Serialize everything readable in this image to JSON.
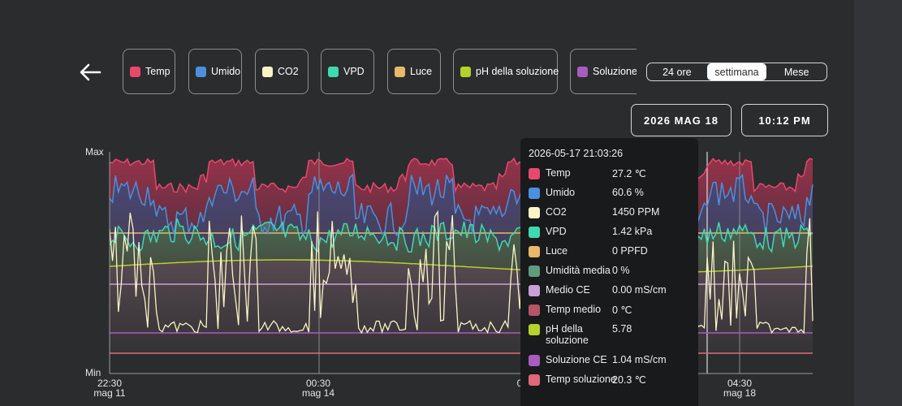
{
  "legend": [
    {
      "label": "Temp",
      "color": "#e8486c"
    },
    {
      "label": "Umido",
      "color": "#4a90dd"
    },
    {
      "label": "CO2",
      "color": "#f9f3c7"
    },
    {
      "label": "VPD",
      "color": "#3fd9b0"
    },
    {
      "label": "Luce",
      "color": "#e9b86b"
    },
    {
      "label": "pH della soluzione",
      "color": "#b5d12b"
    },
    {
      "label": "Soluzione CE",
      "color": "#a95cbf"
    }
  ],
  "range": {
    "options": [
      "24 ore",
      "settimana",
      "Mese"
    ],
    "selected": "settimana"
  },
  "date_label": "2026 MAG 18",
  "time_label": "10:12 PM",
  "axis": {
    "max": "Max",
    "min": "Min"
  },
  "xticks": [
    {
      "time": "22:30",
      "date": "mag 11"
    },
    {
      "time": "00:30",
      "date": "mag 14"
    },
    {
      "time": "0",
      "date": ""
    },
    {
      "time": "04:30",
      "date": "mag 18"
    }
  ],
  "tooltip": {
    "timestamp": "2026-05-17 21:03:26",
    "rows": [
      {
        "name": "Temp",
        "value": "27.2 ℃",
        "color": "#e8486c"
      },
      {
        "name": "Umido",
        "value": "60.6 %",
        "color": "#4a90dd"
      },
      {
        "name": "CO2",
        "value": "1450 PPM",
        "color": "#f9f3c7"
      },
      {
        "name": "VPD",
        "value": "1.42 kPa",
        "color": "#3fd9b0"
      },
      {
        "name": "Luce",
        "value": "0 PPFD",
        "color": "#e9b86b"
      },
      {
        "name": "Umidità media",
        "value": "0 %",
        "color": "#5f9c7c"
      },
      {
        "name": "Medio CE",
        "value": "0.00 mS/cm",
        "color": "#c9a1d8"
      },
      {
        "name": "Temp medio",
        "value": "0 ℃",
        "color": "#b75566"
      },
      {
        "name": "pH della soluzione",
        "value": "5.78",
        "color": "#b5d12b"
      },
      {
        "name": "Soluzione CE",
        "value": "1.04 mS/cm",
        "color": "#a95cbf"
      },
      {
        "name": "Temp soluzione",
        "value": "20.3 ℃",
        "color": "#e06878"
      }
    ]
  }
}
